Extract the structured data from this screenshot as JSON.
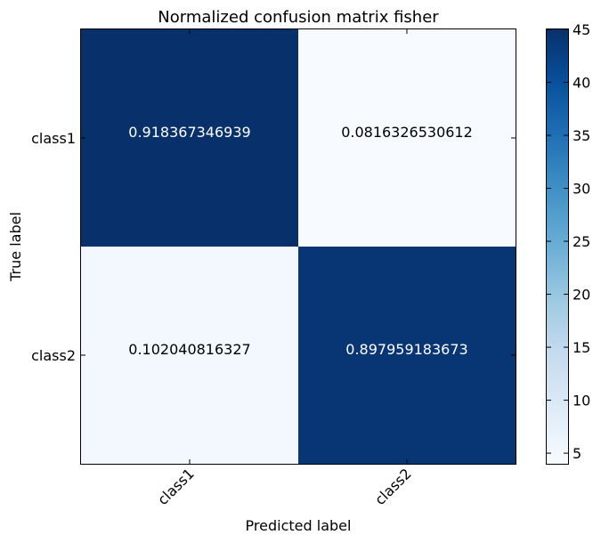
{
  "chart_data": {
    "type": "heatmap",
    "title": "Normalized confusion matrix fisher",
    "xlabel": "Predicted label",
    "ylabel": "True label",
    "x_categories": [
      "class1",
      "class2"
    ],
    "y_categories": [
      "class1",
      "class2"
    ],
    "cell_labels": [
      [
        "0.918367346939",
        "0.0816326530612"
      ],
      [
        "0.102040816327",
        "0.897959183673"
      ]
    ],
    "counts": [
      [
        45,
        4
      ],
      [
        5,
        44
      ]
    ],
    "colorbar": {
      "min": 4,
      "max": 45,
      "ticks": [
        5,
        10,
        15,
        20,
        25,
        30,
        35,
        40,
        45
      ],
      "tick_labels": [
        "5",
        "10",
        "15",
        "20",
        "25",
        "30",
        "35",
        "40",
        "45"
      ],
      "colormap": "Blues"
    },
    "colors": {
      "low": "#f7fbff",
      "high": "#08306b",
      "text_dark": "#000000",
      "text_light": "#ffffff"
    }
  }
}
